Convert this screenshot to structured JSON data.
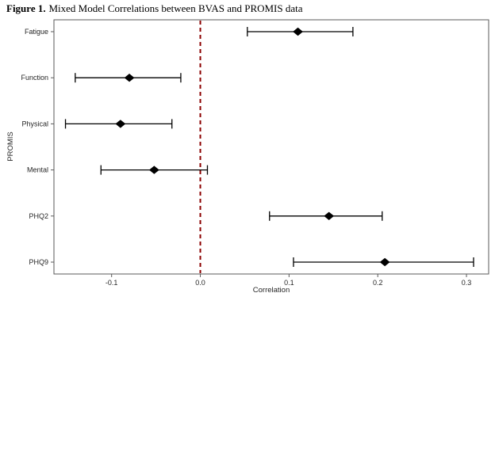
{
  "figure": {
    "label": "Figure 1.",
    "caption": "Mixed Model Correlations between BVAS and PROMIS data"
  },
  "colors": {
    "axis": "#595959",
    "text": "#262626",
    "marker": "#000000",
    "reference_line": "#8B0000",
    "background": "#ffffff"
  },
  "chart_data": {
    "type": "scatter",
    "subtype": "forest-plot",
    "title": "Figure 1. Mixed Model Correlations between BVAS and PROMIS data",
    "xlabel": "Correlation",
    "ylabel": "PROMIS",
    "categories": [
      "Fatigue",
      "Function",
      "Physical",
      "Mental",
      "PHQ2",
      "PHQ9"
    ],
    "series": [
      {
        "name": "Correlation estimate",
        "values": [
          0.11,
          -0.08,
          -0.09,
          -0.052,
          0.145,
          0.208
        ]
      },
      {
        "name": "CI lower bound",
        "values": [
          0.053,
          -0.141,
          -0.152,
          -0.112,
          0.078,
          0.105
        ]
      },
      {
        "name": "CI upper bound",
        "values": [
          0.172,
          -0.022,
          -0.032,
          0.008,
          0.205,
          0.308
        ]
      }
    ],
    "xlim": [
      -0.165,
      0.325
    ],
    "x_ticks": [
      -0.1,
      0.0,
      0.1,
      0.2,
      0.3
    ],
    "x_tick_labels": [
      "-0.1",
      "0.0",
      "0.1",
      "0.2",
      "0.3"
    ],
    "reference_line": {
      "x": 0.0,
      "style": "dashed",
      "color": "#8B0000"
    },
    "marker": {
      "shape": "diamond",
      "color": "#000000"
    },
    "grid": false,
    "legend": false
  }
}
